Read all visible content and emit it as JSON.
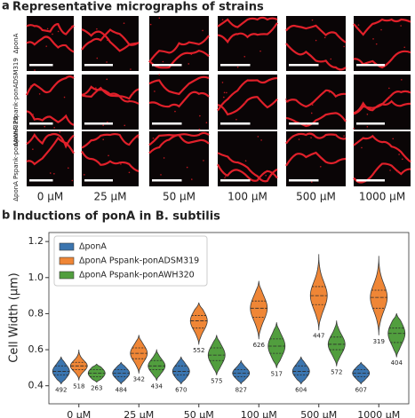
{
  "panel_a": {
    "label": "a",
    "title": "Representative micrographs of strains",
    "row_labels": [
      "ΔponA",
      "ΔponA Pspank-ponADSM319",
      "ΔponA Pspank-ponAWH320"
    ],
    "column_labels": [
      "0 μM",
      "25 μM",
      "50 μM",
      "100 μM",
      "500 μM",
      "1000 μM"
    ]
  },
  "chart_data": {
    "type": "violin",
    "panel_label": "b",
    "title": "Inductions of ponA in B. subtilis",
    "y_label": "Cell Width (μm)",
    "categories": [
      "0 μM",
      "25 μM",
      "50 μM",
      "100 μM",
      "500 μM",
      "1000 μM"
    ],
    "ylim": [
      0.3,
      1.25
    ],
    "yticks": [
      0.4,
      0.6,
      0.8,
      {
        "value": 1,
        "label": "1.0"
      },
      1.2
    ],
    "legend": "upper left",
    "series": [
      {
        "name": "ΔponA",
        "color": "#3b75af",
        "values": [
          0.48,
          0.47,
          0.48,
          0.47,
          0.48,
          0.47
        ],
        "min": [
          0.41,
          0.41,
          0.41,
          0.41,
          0.41,
          0.41
        ],
        "q1": [
          0.46,
          0.45,
          0.46,
          0.45,
          0.46,
          0.45
        ],
        "q3": [
          0.51,
          0.49,
          0.51,
          0.49,
          0.51,
          0.49
        ],
        "max": [
          0.56,
          0.53,
          0.56,
          0.54,
          0.56,
          0.53
        ],
        "counts": [
          492,
          484,
          670,
          827,
          604,
          607
        ]
      },
      {
        "name": "ΔponA Pspank-ponADSM319",
        "color": "#ef8636",
        "values": [
          0.51,
          0.58,
          0.76,
          0.83,
          0.9,
          0.89
        ],
        "min": [
          0.43,
          0.47,
          0.63,
          0.66,
          0.71,
          0.68
        ],
        "q1": [
          0.49,
          0.55,
          0.72,
          0.78,
          0.85,
          0.83
        ],
        "q3": [
          0.53,
          0.61,
          0.79,
          0.87,
          0.95,
          0.93
        ],
        "max": [
          0.6,
          0.68,
          0.86,
          0.98,
          1.13,
          1.12
        ],
        "counts": [
          518,
          342,
          552,
          626,
          447,
          319
        ]
      },
      {
        "name": "ΔponA Pspank-ponAWH320",
        "color": "#519e3e",
        "values": [
          0.47,
          0.51,
          0.57,
          0.62,
          0.63,
          0.69
        ],
        "min": [
          0.42,
          0.43,
          0.46,
          0.5,
          0.51,
          0.56
        ],
        "q1": [
          0.45,
          0.49,
          0.54,
          0.58,
          0.6,
          0.64
        ],
        "q3": [
          0.49,
          0.54,
          0.61,
          0.66,
          0.67,
          0.72
        ],
        "max": [
          0.52,
          0.6,
          0.68,
          0.75,
          0.76,
          0.8
        ],
        "counts": [
          263,
          434,
          575,
          517,
          572,
          404
        ]
      }
    ]
  }
}
